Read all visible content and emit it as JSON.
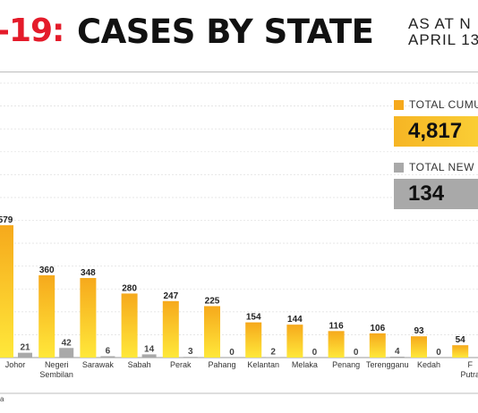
{
  "header": {
    "title_prefix": "-19:",
    "title_main": "CASES BY STATE",
    "asat_line1": "AS AT N",
    "asat_line2": "APRIL 13"
  },
  "legend": {
    "cumulative_label": "TOTAL CUMU",
    "cumulative_value": "4,817",
    "new_label": "TOTAL NEW",
    "new_value": "134"
  },
  "colors": {
    "red": "#e41b2a",
    "bar_top": "#f6a91c",
    "bar_bottom": "#ffe83a",
    "grey": "#a9a9a9"
  },
  "chart_data": {
    "type": "bar",
    "categories": [
      "Johor",
      "Negeri Sembilan",
      "Sarawak",
      "Sabah",
      "Perak",
      "Pahang",
      "Kelantan",
      "Melaka",
      "Penang",
      "Terengganu",
      "Kedah",
      "Putra"
    ],
    "category_labels": [
      [
        "Johor"
      ],
      [
        "Negeri",
        "Sembilan"
      ],
      [
        "Sarawak"
      ],
      [
        "Sabah"
      ],
      [
        "Perak"
      ],
      [
        "Pahang"
      ],
      [
        "Kelantan"
      ],
      [
        "Melaka"
      ],
      [
        "Penang"
      ],
      [
        "Terengganu"
      ],
      [
        "Kedah"
      ],
      [
        "F",
        "Putra"
      ]
    ],
    "series": [
      {
        "name": "TOTAL CUMULATIVE",
        "values": [
          579,
          360,
          348,
          280,
          247,
          225,
          154,
          144,
          116,
          106,
          93,
          54
        ]
      },
      {
        "name": "TOTAL NEW",
        "values": [
          21,
          42,
          6,
          14,
          3,
          0,
          2,
          0,
          0,
          4,
          0,
          null
        ]
      }
    ],
    "ylim": [
      0,
      1200
    ],
    "grid": true
  },
  "footer": {
    "source_fragment": "a"
  }
}
